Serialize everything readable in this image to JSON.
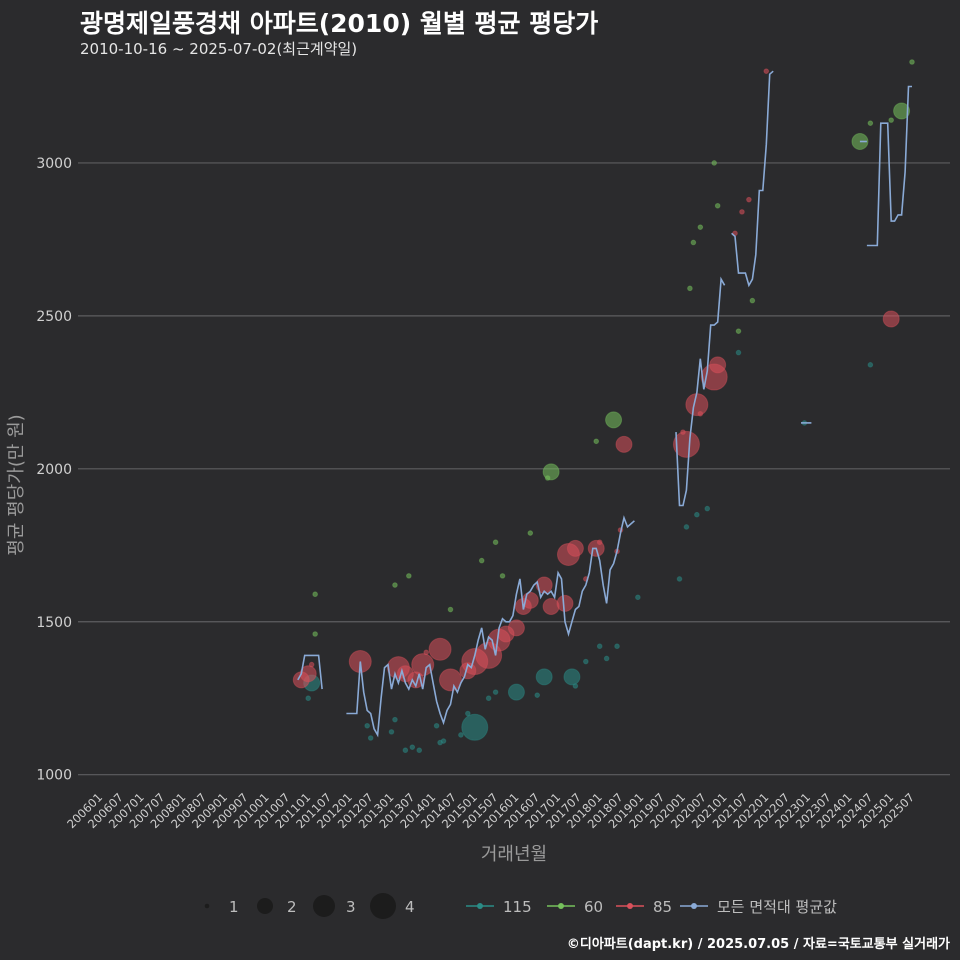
{
  "chart_data": {
    "type": "scatter",
    "title": "광명제일풍경채 아파트(2010) 월별 평균 평당가",
    "subtitle": "2010-10-16 ~ 2025-07-02(최근계약일)",
    "xlabel": "거래년월",
    "ylabel": "평균 평당가(만 원)",
    "ylim": [
      950,
      3330
    ],
    "yticks": [
      1000,
      1500,
      2000,
      2500,
      3000
    ],
    "x_start": "2006-01",
    "x_end": "2025-07",
    "xtick_labels": [
      "200601",
      "200607",
      "200701",
      "200707",
      "200801",
      "200807",
      "200901",
      "200907",
      "201001",
      "201007",
      "201101",
      "201107",
      "201201",
      "201207",
      "201301",
      "201307",
      "201401",
      "201407",
      "201501",
      "201507",
      "201601",
      "201607",
      "201701",
      "201707",
      "201801",
      "201807",
      "201901",
      "201907",
      "202001",
      "202007",
      "202101",
      "202107",
      "202201",
      "202207",
      "202301",
      "202307",
      "202401",
      "202407",
      "202501",
      "202507"
    ],
    "size_legend": {
      "title": "",
      "values": [
        1,
        2,
        3,
        4
      ]
    },
    "series_legend": [
      {
        "name": "115",
        "color": "#2a8c86"
      },
      {
        "name": "60",
        "color": "#76c15c"
      },
      {
        "name": "85",
        "color": "#d9515b"
      },
      {
        "name": "모든 면적대 평균값",
        "color": "#8aaad6"
      }
    ],
    "series": [
      {
        "name": "115",
        "color": "#2a8c86",
        "points": [
          [
            "2011-02",
            1300,
            2
          ],
          [
            "2011-01",
            1250,
            1
          ],
          [
            "2012-06",
            1160,
            1
          ],
          [
            "2012-07",
            1120,
            1
          ],
          [
            "2013-01",
            1140,
            1
          ],
          [
            "2013-02",
            1180,
            1
          ],
          [
            "2013-05",
            1080,
            1
          ],
          [
            "2013-07",
            1090,
            1
          ],
          [
            "2013-09",
            1080,
            1
          ],
          [
            "2014-02",
            1160,
            1
          ],
          [
            "2014-03",
            1105,
            1
          ],
          [
            "2014-04",
            1110,
            1
          ],
          [
            "2014-09",
            1130,
            1
          ],
          [
            "2014-11",
            1200,
            1
          ],
          [
            "2015-01",
            1155,
            4
          ],
          [
            "2015-05",
            1250,
            1
          ],
          [
            "2015-07",
            1270,
            1
          ],
          [
            "2016-01",
            1270,
            2
          ],
          [
            "2016-07",
            1260,
            1
          ],
          [
            "2016-09",
            1320,
            2
          ],
          [
            "2017-05",
            1320,
            2
          ],
          [
            "2017-06",
            1290,
            1
          ],
          [
            "2017-09",
            1370,
            1
          ],
          [
            "2018-01",
            1420,
            1
          ],
          [
            "2018-03",
            1380,
            1
          ],
          [
            "2018-06",
            1420,
            1
          ],
          [
            "2018-12",
            1580,
            1
          ],
          [
            "2019-12",
            1640,
            1
          ],
          [
            "2020-02",
            1810,
            1
          ],
          [
            "2020-05",
            1850,
            1
          ],
          [
            "2020-08",
            1870,
            1
          ],
          [
            "2021-05",
            2380,
            1
          ],
          [
            "2022-12",
            2150,
            1
          ],
          [
            "2024-07",
            2340,
            1
          ]
        ]
      },
      {
        "name": "60",
        "color": "#76c15c",
        "points": [
          [
            "2011-03",
            1590,
            1
          ],
          [
            "2011-03",
            1460,
            1
          ],
          [
            "2013-02",
            1620,
            1
          ],
          [
            "2013-06",
            1650,
            1
          ],
          [
            "2014-06",
            1540,
            1
          ],
          [
            "2015-03",
            1700,
            1
          ],
          [
            "2015-07",
            1760,
            1
          ],
          [
            "2015-09",
            1650,
            1
          ],
          [
            "2016-05",
            1790,
            1
          ],
          [
            "2016-10",
            1970,
            1
          ],
          [
            "2016-11",
            1990,
            2
          ],
          [
            "2017-12",
            2090,
            1
          ],
          [
            "2018-05",
            2160,
            2
          ],
          [
            "2020-03",
            2590,
            1
          ],
          [
            "2020-04",
            2740,
            1
          ],
          [
            "2020-06",
            2790,
            1
          ],
          [
            "2020-10",
            3000,
            1
          ],
          [
            "2020-11",
            2860,
            1
          ],
          [
            "2021-05",
            2450,
            1
          ],
          [
            "2021-09",
            2550,
            1
          ],
          [
            "2024-04",
            3070,
            2
          ],
          [
            "2024-07",
            3130,
            1
          ],
          [
            "2025-01",
            3140,
            1
          ],
          [
            "2025-04",
            3170,
            2
          ],
          [
            "2025-07",
            3330,
            1
          ]
        ]
      },
      {
        "name": "85",
        "color": "#d9515b",
        "points": [
          [
            "2010-11",
            1310,
            2
          ],
          [
            "2011-01",
            1330,
            2
          ],
          [
            "2011-02",
            1360,
            1
          ],
          [
            "2012-04",
            1370,
            3
          ],
          [
            "2013-03",
            1350,
            3
          ],
          [
            "2013-05",
            1330,
            2
          ],
          [
            "2013-08",
            1310,
            2
          ],
          [
            "2013-10",
            1360,
            3
          ],
          [
            "2013-11",
            1400,
            1
          ],
          [
            "2014-03",
            1410,
            3
          ],
          [
            "2014-06",
            1310,
            3
          ],
          [
            "2014-11",
            1340,
            2
          ],
          [
            "2015-01",
            1370,
            4
          ],
          [
            "2015-05",
            1390,
            4
          ],
          [
            "2015-08",
            1440,
            3
          ],
          [
            "2015-10",
            1460,
            2
          ],
          [
            "2016-01",
            1480,
            2
          ],
          [
            "2016-03",
            1550,
            2
          ],
          [
            "2016-05",
            1570,
            2
          ],
          [
            "2016-09",
            1620,
            2
          ],
          [
            "2016-11",
            1550,
            2
          ],
          [
            "2017-03",
            1560,
            2
          ],
          [
            "2017-04",
            1720,
            3
          ],
          [
            "2017-06",
            1740,
            2
          ],
          [
            "2017-09",
            1640,
            1
          ],
          [
            "2017-12",
            1740,
            2
          ],
          [
            "2018-01",
            1760,
            1
          ],
          [
            "2018-06",
            1730,
            1
          ],
          [
            "2018-07",
            1800,
            1
          ],
          [
            "2018-08",
            2080,
            2
          ],
          [
            "2020-01",
            2120,
            1
          ],
          [
            "2020-02",
            2080,
            4
          ],
          [
            "2020-05",
            2210,
            3
          ],
          [
            "2020-06",
            2180,
            1
          ],
          [
            "2020-10",
            2300,
            4
          ],
          [
            "2020-11",
            2340,
            2
          ],
          [
            "2021-04",
            2770,
            1
          ],
          [
            "2021-06",
            2840,
            1
          ],
          [
            "2021-08",
            2880,
            1
          ],
          [
            "2022-01",
            3300,
            1
          ],
          [
            "2025-01",
            2490,
            2
          ]
        ]
      }
    ],
    "average_line": {
      "name": "모든 면적대 평균값",
      "color": "#8aaad6",
      "segments": [
        [
          [
            "2010-10",
            1310
          ],
          [
            "2010-11",
            1330
          ],
          [
            "2010-12",
            1390
          ],
          [
            "2011-01",
            1390
          ],
          [
            "2011-02",
            1390
          ],
          [
            "2011-03",
            1390
          ],
          [
            "2011-04",
            1390
          ],
          [
            "2011-05",
            1280
          ]
        ],
        [
          [
            "2011-12",
            1200
          ],
          [
            "2012-01",
            1200
          ],
          [
            "2012-02",
            1200
          ],
          [
            "2012-03",
            1200
          ],
          [
            "2012-04",
            1370
          ],
          [
            "2012-05",
            1270
          ],
          [
            "2012-06",
            1210
          ],
          [
            "2012-07",
            1200
          ],
          [
            "2012-08",
            1150
          ],
          [
            "2012-09",
            1130
          ],
          [
            "2012-10",
            1250
          ],
          [
            "2012-11",
            1350
          ],
          [
            "2012-12",
            1360
          ],
          [
            "2013-01",
            1280
          ],
          [
            "2013-02",
            1330
          ],
          [
            "2013-03",
            1300
          ],
          [
            "2013-04",
            1340
          ],
          [
            "2013-05",
            1300
          ],
          [
            "2013-06",
            1280
          ],
          [
            "2013-07",
            1310
          ],
          [
            "2013-08",
            1290
          ],
          [
            "2013-09",
            1330
          ],
          [
            "2013-10",
            1280
          ],
          [
            "2013-11",
            1350
          ],
          [
            "2013-12",
            1360
          ],
          [
            "2014-01",
            1300
          ],
          [
            "2014-02",
            1240
          ],
          [
            "2014-03",
            1200
          ],
          [
            "2014-04",
            1170
          ],
          [
            "2014-05",
            1210
          ],
          [
            "2014-06",
            1230
          ],
          [
            "2014-07",
            1290
          ],
          [
            "2014-08",
            1270
          ],
          [
            "2014-09",
            1300
          ],
          [
            "2014-10",
            1320
          ],
          [
            "2014-11",
            1360
          ],
          [
            "2014-12",
            1350
          ],
          [
            "2015-01",
            1390
          ],
          [
            "2015-02",
            1440
          ],
          [
            "2015-03",
            1480
          ],
          [
            "2015-04",
            1410
          ],
          [
            "2015-05",
            1450
          ],
          [
            "2015-06",
            1440
          ],
          [
            "2015-07",
            1390
          ],
          [
            "2015-08",
            1480
          ],
          [
            "2015-09",
            1510
          ],
          [
            "2015-10",
            1500
          ],
          [
            "2015-11",
            1500
          ],
          [
            "2015-12",
            1520
          ],
          [
            "2016-01",
            1590
          ],
          [
            "2016-02",
            1640
          ],
          [
            "2016-03",
            1540
          ],
          [
            "2016-04",
            1590
          ],
          [
            "2016-05",
            1600
          ],
          [
            "2016-06",
            1620
          ],
          [
            "2016-07",
            1630
          ],
          [
            "2016-08",
            1580
          ],
          [
            "2016-09",
            1600
          ],
          [
            "2016-10",
            1590
          ],
          [
            "2016-11",
            1600
          ],
          [
            "2016-12",
            1580
          ],
          [
            "2017-01",
            1660
          ],
          [
            "2017-02",
            1640
          ],
          [
            "2017-03",
            1500
          ],
          [
            "2017-04",
            1460
          ],
          [
            "2017-05",
            1500
          ],
          [
            "2017-06",
            1540
          ],
          [
            "2017-07",
            1550
          ],
          [
            "2017-08",
            1600
          ],
          [
            "2017-09",
            1620
          ],
          [
            "2017-10",
            1660
          ],
          [
            "2017-11",
            1740
          ],
          [
            "2017-12",
            1740
          ],
          [
            "2018-01",
            1700
          ],
          [
            "2018-02",
            1620
          ],
          [
            "2018-03",
            1560
          ],
          [
            "2018-04",
            1670
          ],
          [
            "2018-05",
            1690
          ],
          [
            "2018-06",
            1730
          ],
          [
            "2018-07",
            1790
          ],
          [
            "2018-08",
            1840
          ],
          [
            "2018-09",
            1810
          ],
          [
            "2018-10",
            1820
          ],
          [
            "2018-11",
            1830
          ]
        ],
        [
          [
            "2019-11",
            2120
          ],
          [
            "2019-12",
            1880
          ],
          [
            "2020-01",
            1880
          ],
          [
            "2020-02",
            1930
          ],
          [
            "2020-03",
            2100
          ],
          [
            "2020-04",
            2200
          ],
          [
            "2020-05",
            2250
          ],
          [
            "2020-06",
            2360
          ],
          [
            "2020-07",
            2260
          ],
          [
            "2020-08",
            2320
          ],
          [
            "2020-09",
            2470
          ],
          [
            "2020-10",
            2470
          ],
          [
            "2020-11",
            2480
          ],
          [
            "2020-12",
            2620
          ],
          [
            "2021-01",
            2600
          ]
        ],
        [
          [
            "2021-03",
            2770
          ],
          [
            "2021-04",
            2760
          ],
          [
            "2021-05",
            2640
          ],
          [
            "2021-06",
            2640
          ],
          [
            "2021-07",
            2640
          ],
          [
            "2021-08",
            2600
          ],
          [
            "2021-09",
            2620
          ],
          [
            "2021-10",
            2700
          ],
          [
            "2021-11",
            2910
          ],
          [
            "2021-12",
            2910
          ],
          [
            "2022-01",
            3060
          ],
          [
            "2022-02",
            3290
          ],
          [
            "2022-03",
            3300
          ]
        ],
        [
          [
            "2022-11",
            2150
          ],
          [
            "2022-12",
            2150
          ],
          [
            "2023-01",
            2150
          ],
          [
            "2023-02",
            2150
          ]
        ],
        [
          [
            "2024-04",
            3070
          ],
          [
            "2024-05",
            3070
          ],
          [
            "2024-06",
            3070
          ]
        ],
        [
          [
            "2024-06",
            2730
          ],
          [
            "2024-07",
            2730
          ],
          [
            "2024-08",
            2730
          ],
          [
            "2024-09",
            2730
          ],
          [
            "2024-10",
            3130
          ],
          [
            "2024-11",
            3130
          ],
          [
            "2024-12",
            3130
          ],
          [
            "2025-01",
            2810
          ],
          [
            "2025-02",
            2810
          ],
          [
            "2025-03",
            2830
          ],
          [
            "2025-04",
            2830
          ],
          [
            "2025-05",
            2970
          ],
          [
            "2025-06",
            3250
          ],
          [
            "2025-07",
            3250
          ]
        ]
      ]
    }
  },
  "footer": "©디아파트(dapt.kr) / 2025.07.05 / 자료=국토교통부 실거래가"
}
